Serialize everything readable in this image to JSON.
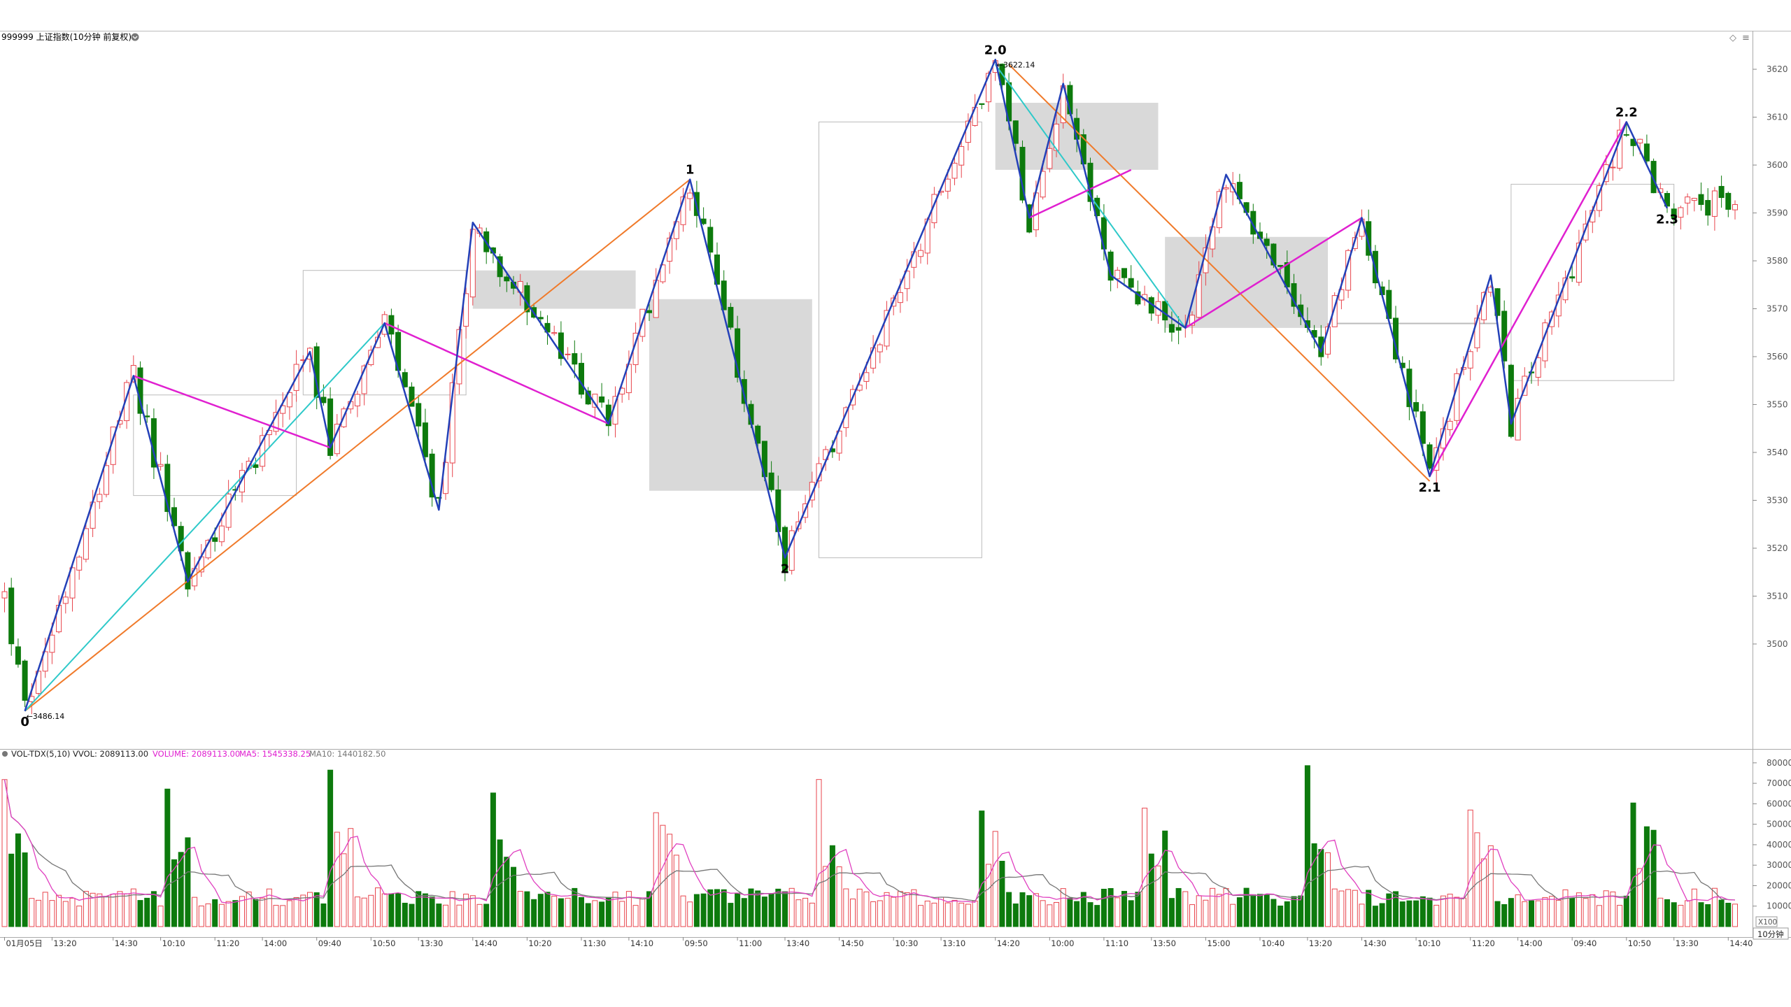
{
  "header": {
    "title": "999999 上证指数(10分钟 前复权)",
    "controls": [
      "◇",
      "≡"
    ]
  },
  "volume_header": {
    "indicator": "VOL-TDX(5,10)",
    "vvol": "VVOL: 2089113.00",
    "volume": "VOLUME: 2089113.00",
    "ma5": "MA5: 1545338.25",
    "ma10": "MA10: 1440182.50"
  },
  "colors": {
    "up": "#e8454d",
    "down": "#0d7a0d",
    "wave": "#2340b8",
    "trend": "#f07a2a",
    "cyan": "#2ec9c9",
    "magenta": "#e020d0",
    "ma_vol": "#e040c0",
    "ma_vol10": "#777777",
    "grid": "#aaaaaa",
    "box_fill": "#d9d9d9",
    "box_line": "#bbbbbb"
  },
  "scale_label": "X100",
  "period_label": "10分钟",
  "chart_data": {
    "type": "candlestick",
    "title": "999999 上证指数(10分钟 前复权)",
    "y_ticks": [
      3500,
      3510,
      3520,
      3530,
      3540,
      3550,
      3560,
      3570,
      3580,
      3590,
      3600,
      3610,
      3620
    ],
    "y_range": [
      3484,
      3623
    ],
    "vol_ticks": [
      10000,
      20000,
      30000,
      40000,
      50000,
      60000,
      70000,
      80000
    ],
    "vol_range": [
      0,
      82000
    ],
    "x_ticks": [
      {
        "i": 0,
        "label": "01月05日"
      },
      {
        "i": 7,
        "label": "13:20"
      },
      {
        "i": 16,
        "label": "14:30"
      },
      {
        "i": 23,
        "label": "10:10"
      },
      {
        "i": 31,
        "label": "11:20"
      },
      {
        "i": 38,
        "label": "14:00"
      },
      {
        "i": 46,
        "label": "09:40"
      },
      {
        "i": 54,
        "label": "10:50"
      },
      {
        "i": 61,
        "label": "13:30"
      },
      {
        "i": 69,
        "label": "14:40"
      },
      {
        "i": 77,
        "label": "10:20"
      },
      {
        "i": 85,
        "label": "11:30"
      },
      {
        "i": 92,
        "label": "14:10"
      },
      {
        "i": 100,
        "label": "09:50"
      },
      {
        "i": 108,
        "label": "11:00"
      },
      {
        "i": 115,
        "label": "13:40"
      },
      {
        "i": 123,
        "label": "14:50"
      },
      {
        "i": 131,
        "label": "10:30"
      },
      {
        "i": 138,
        "label": "13:10"
      },
      {
        "i": 146,
        "label": "14:20"
      },
      {
        "i": 154,
        "label": "10:00"
      },
      {
        "i": 162,
        "label": "11:10"
      },
      {
        "i": 169,
        "label": "13:50"
      },
      {
        "i": 177,
        "label": "15:00"
      },
      {
        "i": 185,
        "label": "10:40"
      },
      {
        "i": 192,
        "label": "13:20"
      },
      {
        "i": 200,
        "label": "14:30"
      },
      {
        "i": 208,
        "label": "10:10"
      },
      {
        "i": 216,
        "label": "11:20"
      },
      {
        "i": 223,
        "label": "14:00"
      },
      {
        "i": 231,
        "label": "09:40"
      },
      {
        "i": 239,
        "label": "10:50"
      },
      {
        "i": 246,
        "label": "13:30"
      },
      {
        "i": 254,
        "label": "14:40"
      }
    ],
    "price_annotations": [
      {
        "label": "3486.14",
        "i": 3,
        "price": 3486.14
      },
      {
        "label": "3622.14",
        "i": 146,
        "price": 3622.14
      }
    ],
    "wave_labels": [
      {
        "label": "0",
        "i": 3,
        "price": 3486.14,
        "pos": "below"
      },
      {
        "label": "1",
        "i": 101,
        "price": 3597,
        "pos": "above"
      },
      {
        "label": "2",
        "i": 115,
        "price": 3518,
        "pos": "below"
      },
      {
        "label": "2.0",
        "i": 146,
        "price": 3622,
        "pos": "above"
      },
      {
        "label": "2.1",
        "i": 210,
        "price": 3535,
        "pos": "below"
      },
      {
        "label": "2.2",
        "i": 239,
        "price": 3609,
        "pos": "above"
      },
      {
        "label": "2.3",
        "i": 245,
        "price": 3591,
        "pos": "below"
      }
    ],
    "blue_wave": [
      [
        3,
        3486
      ],
      [
        19,
        3556
      ],
      [
        27,
        3513
      ],
      [
        45,
        3561
      ],
      [
        48,
        3541
      ],
      [
        56,
        3567
      ],
      [
        64,
        3528
      ],
      [
        69,
        3588
      ],
      [
        89,
        3546
      ],
      [
        101,
        3597
      ],
      [
        115,
        3518
      ],
      [
        146,
        3622
      ],
      [
        151,
        3589
      ],
      [
        156,
        3617
      ],
      [
        163,
        3577
      ],
      [
        174,
        3566
      ],
      [
        180,
        3598
      ],
      [
        194,
        3561
      ],
      [
        200,
        3589
      ],
      [
        210,
        3535
      ],
      [
        219,
        3577
      ],
      [
        222,
        3546
      ],
      [
        239,
        3609
      ],
      [
        245,
        3591
      ]
    ],
    "orange_lines": [
      [
        [
          3,
          3486
        ],
        [
          101,
          3597
        ]
      ],
      [
        [
          148,
          3621
        ],
        [
          210,
          3534
        ]
      ]
    ],
    "cyan_lines": [
      [
        [
          3,
          3486
        ],
        [
          56,
          3567
        ]
      ],
      [
        [
          146,
          3621
        ],
        [
          174,
          3566
        ]
      ]
    ],
    "magenta_lines": [
      [
        [
          19,
          3556
        ],
        [
          48,
          3541
        ]
      ],
      [
        [
          56,
          3567
        ],
        [
          89,
          3546
        ]
      ],
      [
        [
          151,
          3589
        ],
        [
          166,
          3599
        ]
      ],
      [
        [
          174,
          3566
        ],
        [
          200,
          3589
        ]
      ],
      [
        [
          210,
          3535
        ],
        [
          239,
          3609
        ]
      ]
    ],
    "boxes": [
      {
        "i0": 69,
        "i1": 93,
        "p0": 3570,
        "p1": 3578,
        "fill": true
      },
      {
        "i0": 95,
        "i1": 119,
        "p0": 3532,
        "p1": 3572,
        "fill": true
      },
      {
        "i0": 146,
        "i1": 170,
        "p0": 3599,
        "p1": 3613,
        "fill": true
      },
      {
        "i0": 171,
        "i1": 195,
        "p0": 3566,
        "p1": 3585,
        "fill": true
      },
      {
        "i0": 19,
        "i1": 43,
        "p0": 3531,
        "p1": 3552,
        "fill": false
      },
      {
        "i0": 44,
        "i1": 68,
        "p0": 3552,
        "p1": 3578,
        "fill": false
      },
      {
        "i0": 120,
        "i1": 144,
        "p0": 3518,
        "p1": 3609,
        "fill": false
      },
      {
        "i0": 196,
        "i1": 220,
        "p0": 3567,
        "p1": 3567,
        "fill": false
      },
      {
        "i0": 222,
        "i1": 246,
        "p0": 3555,
        "p1": 3596,
        "fill": false
      }
    ]
  }
}
